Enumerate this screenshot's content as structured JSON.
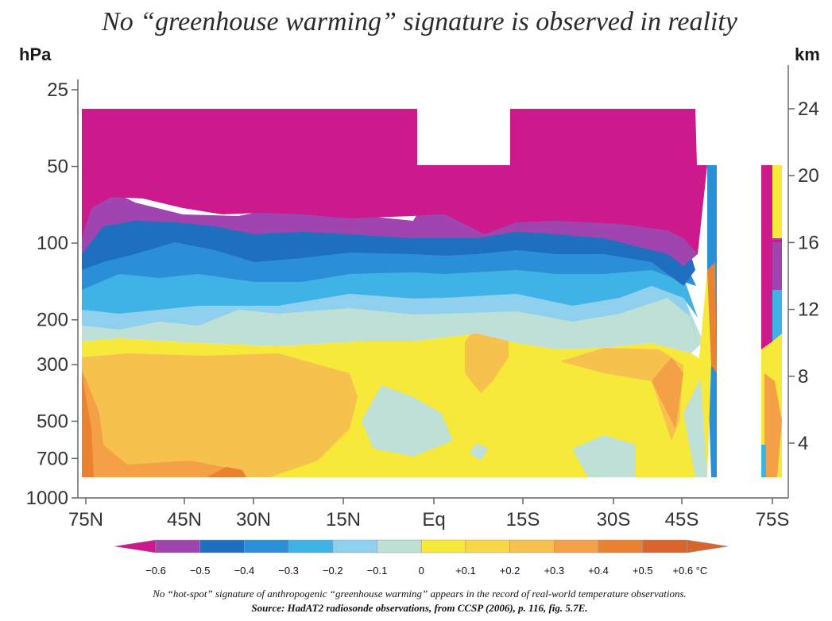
{
  "chart_data": {
    "type": "heatmap",
    "title": "No “greenhouse warming” signature is observed in reality",
    "left_axis": {
      "unit": "hPa",
      "ticks": [
        {
          "label": "25",
          "value": 25
        },
        {
          "label": "50",
          "value": 50
        },
        {
          "label": "100",
          "value": 100
        },
        {
          "label": "200",
          "value": 200
        },
        {
          "label": "300",
          "value": 300
        },
        {
          "label": "500",
          "value": 500
        },
        {
          "label": "700",
          "value": 700
        },
        {
          "label": "1000",
          "value": 1000
        }
      ],
      "scale": "log",
      "range": [
        1000,
        25
      ]
    },
    "right_axis": {
      "unit": "km",
      "ticks": [
        {
          "label": "24",
          "value": 24
        },
        {
          "label": "20",
          "value": 20
        },
        {
          "label": "16",
          "value": 16
        },
        {
          "label": "12",
          "value": 12
        },
        {
          "label": "8",
          "value": 8
        },
        {
          "label": "4",
          "value": 4
        }
      ]
    },
    "x_axis": {
      "ticks": [
        "75N",
        "45N",
        "30N",
        "15N",
        "Eq",
        "15S",
        "30S",
        "45S",
        "75S"
      ]
    },
    "colorbar": {
      "labels": [
        "−0.6",
        "−0.5",
        "−0.4",
        "−0.3",
        "−0.2",
        "−0.1",
        "0",
        "+0.1",
        "+0.2",
        "+0.3",
        "+0.4",
        "+0.5",
        "+0.6 °C"
      ],
      "bins": [
        {
          "min": null,
          "max": -0.6,
          "color": "#cc1a8c"
        },
        {
          "min": -0.6,
          "max": -0.5,
          "color": "#a044b0"
        },
        {
          "min": -0.5,
          "max": -0.4,
          "color": "#1f6fbf"
        },
        {
          "min": -0.4,
          "max": -0.3,
          "color": "#2b8fd8"
        },
        {
          "min": -0.3,
          "max": -0.2,
          "color": "#3fb3e6"
        },
        {
          "min": -0.2,
          "max": -0.1,
          "color": "#8fd0ee"
        },
        {
          "min": -0.1,
          "max": 0.0,
          "color": "#bfe0d6"
        },
        {
          "min": 0.0,
          "max": 0.1,
          "color": "#f7e93a"
        },
        {
          "min": 0.1,
          "max": 0.2,
          "color": "#f8d64a"
        },
        {
          "min": 0.2,
          "max": 0.3,
          "color": "#f6c14d"
        },
        {
          "min": 0.3,
          "max": 0.4,
          "color": "#f3a046"
        },
        {
          "min": 0.4,
          "max": 0.5,
          "color": "#ea8232"
        },
        {
          "min": 0.5,
          "max": 0.6,
          "color": "#d9652c"
        },
        {
          "min": 0.6,
          "max": null,
          "color": "#d9652c"
        }
      ]
    },
    "caption": {
      "line1": "No “hot-spot” signature of anthropogenic “greenhouse warming” appears in the record of real-world temperature observations.",
      "line2": "Source: HadAT2 radiosonde observations, from CCSP (2006), p. 116, fig. 5.7E."
    },
    "grid": false
  }
}
